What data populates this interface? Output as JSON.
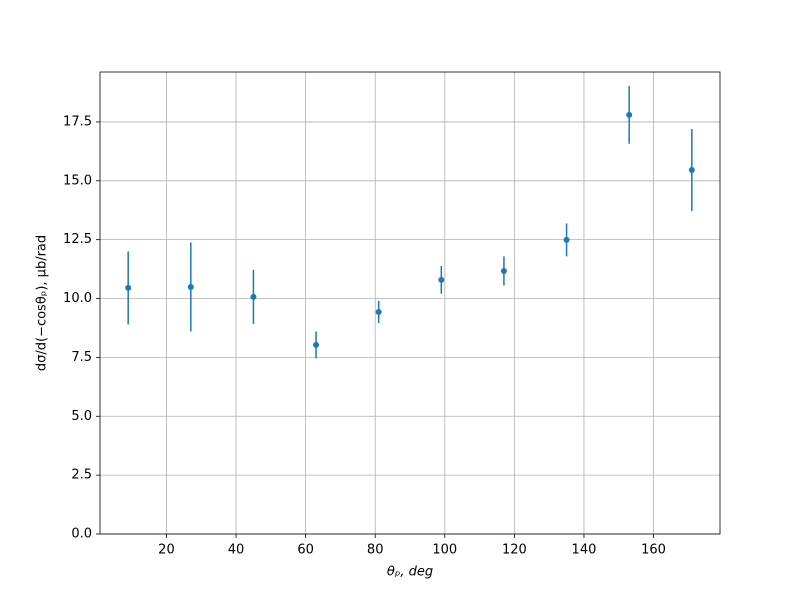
{
  "chart_data": {
    "type": "errorbar",
    "x_label": "θₚ, deg",
    "y_label": "dσ/d(−cosθₚ), μb/rad",
    "x": [
      9,
      27,
      45,
      63,
      81,
      99,
      117,
      135,
      153,
      171
    ],
    "values": [
      10.45,
      10.49,
      10.07,
      8.03,
      9.43,
      10.79,
      11.17,
      12.49,
      17.8,
      15.46
    ],
    "errors": [
      1.55,
      1.89,
      1.15,
      0.57,
      0.47,
      0.59,
      0.62,
      0.7,
      1.23,
      1.74
    ],
    "color": "#1f77b4",
    "xlim": [
      0.9,
      179.1
    ],
    "ylim": [
      0,
      19.62
    ],
    "xticks": [
      20,
      40,
      60,
      80,
      100,
      120,
      140,
      160
    ],
    "yticks": [
      {
        "value": 0,
        "label": "0.0"
      },
      2.5,
      {
        "value": 5,
        "label": "5.0"
      },
      7.5,
      {
        "value": 10,
        "label": "10.0"
      },
      12.5,
      {
        "value": 15,
        "label": "15.0"
      },
      17.5
    ],
    "grid": true
  }
}
